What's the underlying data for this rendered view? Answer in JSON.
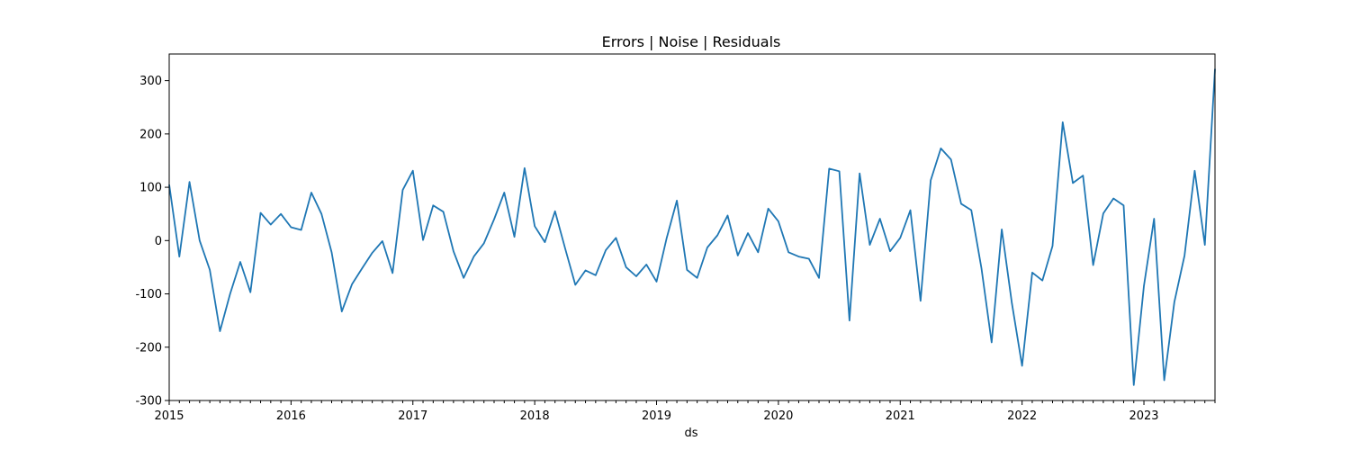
{
  "chart_data": {
    "type": "line",
    "title": "Errors | Noise | Residuals",
    "xlabel": "ds",
    "ylabel": "",
    "ylim": [
      -300,
      350
    ],
    "xlim": [
      "2015-01",
      "2023-08"
    ],
    "yticks": [
      -300,
      -200,
      -100,
      0,
      100,
      200,
      300
    ],
    "xticks": [
      "2015",
      "2016",
      "2017",
      "2018",
      "2019",
      "2020",
      "2021",
      "2022",
      "2023"
    ],
    "grid": false,
    "series": [
      {
        "name": "",
        "color": "#1f77b4",
        "x": [
          "2015-01",
          "2015-02",
          "2015-03",
          "2015-04",
          "2015-05",
          "2015-06",
          "2015-07",
          "2015-08",
          "2015-09",
          "2015-10",
          "2015-11",
          "2015-12",
          "2016-01",
          "2016-02",
          "2016-03",
          "2016-04",
          "2016-05",
          "2016-06",
          "2016-07",
          "2016-08",
          "2016-09",
          "2016-10",
          "2016-11",
          "2016-12",
          "2017-01",
          "2017-02",
          "2017-03",
          "2017-04",
          "2017-05",
          "2017-06",
          "2017-07",
          "2017-08",
          "2017-09",
          "2017-10",
          "2017-11",
          "2017-12",
          "2018-01",
          "2018-02",
          "2018-03",
          "2018-04",
          "2018-05",
          "2018-06",
          "2018-07",
          "2018-08",
          "2018-09",
          "2018-10",
          "2018-11",
          "2018-12",
          "2019-01",
          "2019-02",
          "2019-03",
          "2019-04",
          "2019-05",
          "2019-06",
          "2019-07",
          "2019-08",
          "2019-09",
          "2019-10",
          "2019-11",
          "2019-12",
          "2020-01",
          "2020-02",
          "2020-03",
          "2020-04",
          "2020-05",
          "2020-06",
          "2020-07",
          "2020-08",
          "2020-09",
          "2020-10",
          "2020-11",
          "2020-12",
          "2021-01",
          "2021-02",
          "2021-03",
          "2021-04",
          "2021-05",
          "2021-06",
          "2021-07",
          "2021-08",
          "2021-09",
          "2021-10",
          "2021-11",
          "2021-12",
          "2022-01",
          "2022-02",
          "2022-03",
          "2022-04",
          "2022-05",
          "2022-06",
          "2022-07",
          "2022-08",
          "2022-09",
          "2022-10",
          "2022-11",
          "2022-12",
          "2023-01",
          "2023-02",
          "2023-03",
          "2023-04",
          "2023-05",
          "2023-06",
          "2023-07",
          "2023-08"
        ],
        "values": [
          105,
          -30,
          110,
          0,
          -55,
          -170,
          -100,
          -40,
          -97,
          52,
          30,
          50,
          25,
          20,
          90,
          50,
          -22,
          -133,
          -82,
          -52,
          -23,
          -1,
          -61,
          95,
          131,
          1,
          66,
          54,
          -20,
          -70,
          -30,
          -5,
          40,
          90,
          7,
          136,
          27,
          -3,
          55,
          -15,
          -83,
          -56,
          -65,
          -18,
          5,
          -50,
          -67,
          -45,
          -77,
          5,
          75,
          -55,
          -70,
          -13,
          10,
          47,
          -28,
          14,
          -22,
          60,
          36,
          -22,
          -30,
          -34,
          -70,
          135,
          130,
          -150,
          126,
          -8,
          41,
          -20,
          5,
          57,
          -113,
          113,
          173,
          152,
          69,
          57,
          -52,
          -191,
          21,
          -118,
          -235,
          -60,
          -75,
          -10,
          222,
          108,
          122,
          -46,
          51,
          79,
          66,
          -271,
          -85,
          41,
          -262,
          -115,
          -28,
          131,
          -8,
          322
        ]
      }
    ]
  }
}
